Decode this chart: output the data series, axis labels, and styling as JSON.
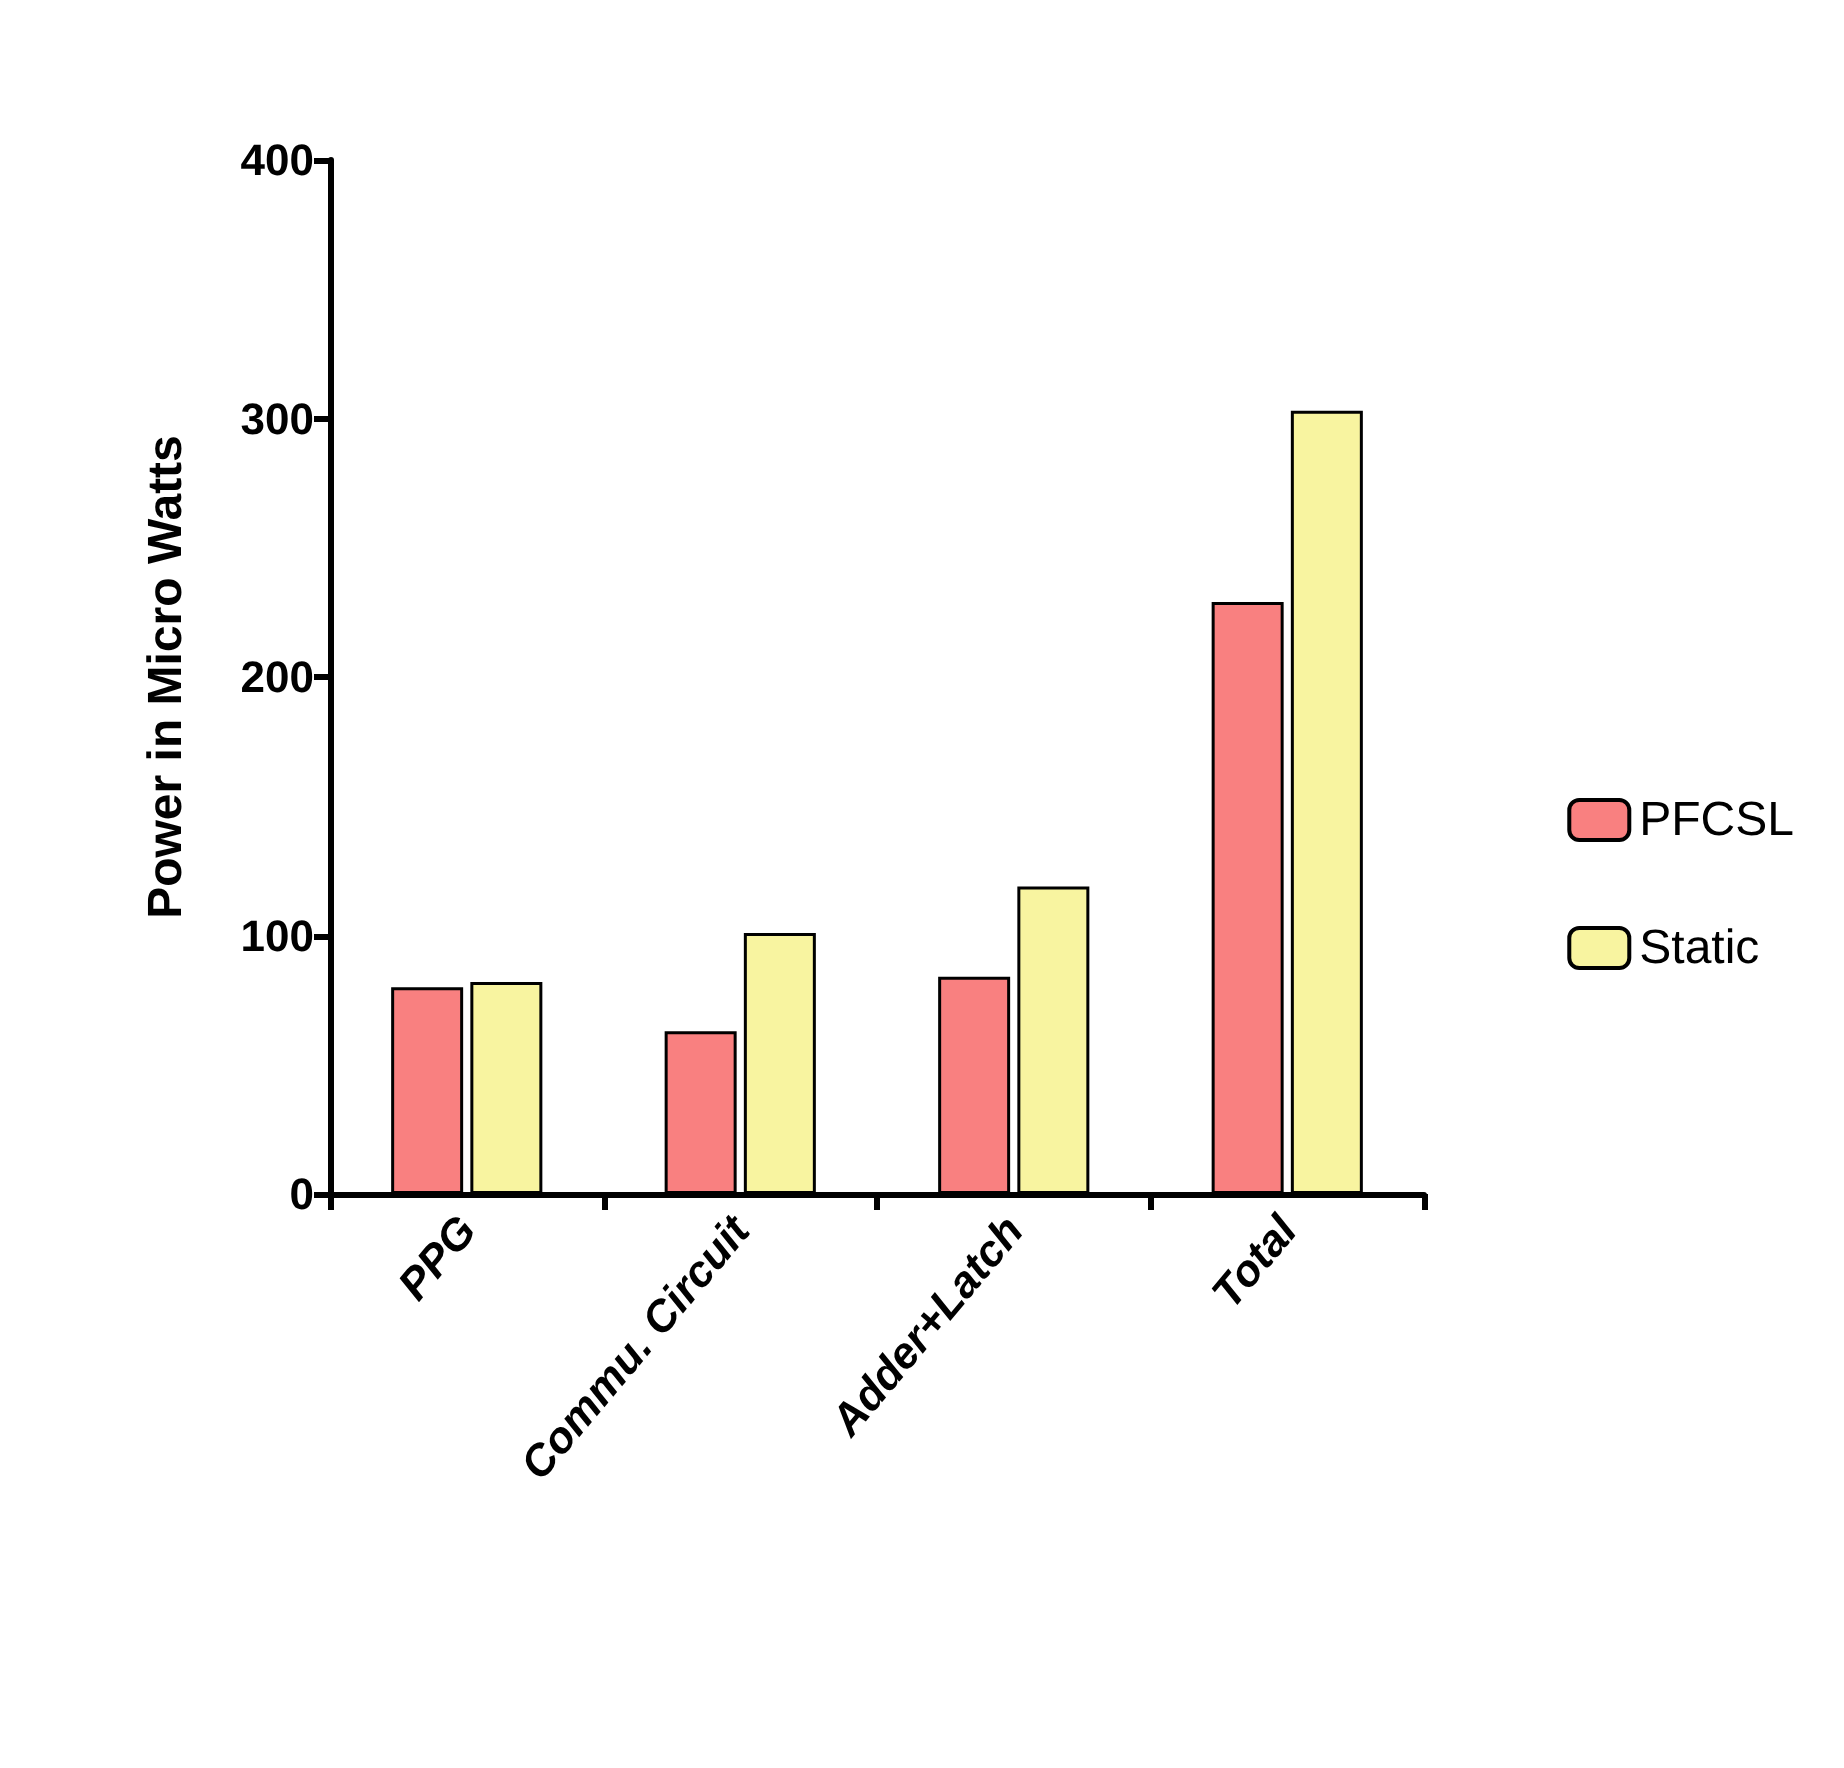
{
  "chart_data": {
    "type": "bar",
    "ylabel": "Power in Micro Watts",
    "categories": [
      "PPG",
      "Commu. Circuit",
      "Adder+Latch",
      "Total"
    ],
    "series": [
      {
        "name": "PFCSL",
        "color": "#f98080",
        "values": [
          80,
          63,
          84,
          229
        ]
      },
      {
        "name": "Static",
        "color": "#f8f4a0",
        "values": [
          82,
          101,
          119,
          303
        ]
      }
    ],
    "ylim": [
      0,
      400
    ],
    "yticks": [
      0,
      100,
      200,
      300,
      400
    ],
    "grid": false,
    "legend": "right"
  }
}
